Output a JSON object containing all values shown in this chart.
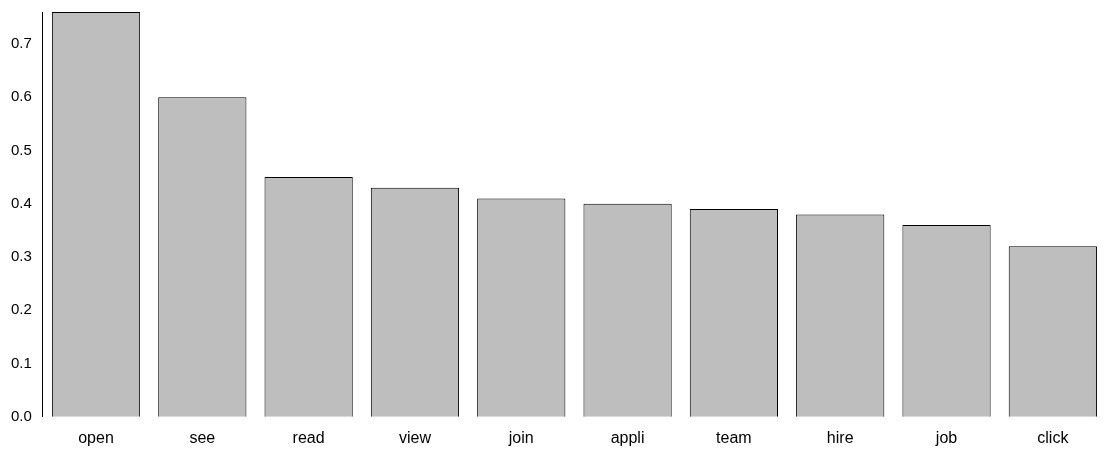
{
  "chart_data": {
    "type": "bar",
    "categories": [
      "open",
      "see",
      "read",
      "view",
      "join",
      "appli",
      "team",
      "hire",
      "job",
      "click"
    ],
    "values": [
      0.76,
      0.6,
      0.45,
      0.43,
      0.41,
      0.4,
      0.39,
      0.38,
      0.36,
      0.32
    ],
    "color": "#bebebe",
    "ylim": [
      0,
      0.76
    ],
    "yticks": [
      {
        "value": 0,
        "label": "0.0"
      },
      {
        "value": 0.1,
        "label": "0.1"
      },
      {
        "value": 0.2,
        "label": "0.2"
      },
      {
        "value": 0.3,
        "label": "0.3"
      },
      {
        "value": 0.4,
        "label": "0.4"
      },
      {
        "value": 0.5,
        "label": "0.5"
      },
      {
        "value": 0.6,
        "label": "0.6"
      },
      {
        "value": 0.7,
        "label": "0.7"
      }
    ],
    "grid": false,
    "legend": false
  }
}
